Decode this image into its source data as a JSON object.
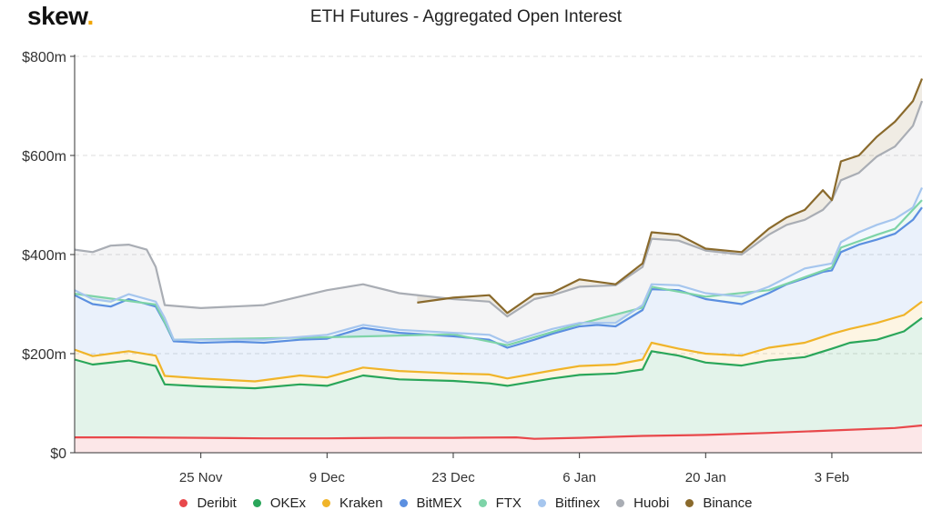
{
  "logo": {
    "text": "skew",
    "dot": "."
  },
  "chart_data": {
    "type": "area",
    "stacked": true,
    "title": "ETH Futures - Aggregated Open Interest",
    "xlabel": "",
    "ylabel": "",
    "ylim": [
      0,
      800
    ],
    "y_ticks": [
      0,
      200,
      400,
      600,
      800
    ],
    "y_tick_labels": [
      "$0",
      "$200m",
      "$400m",
      "$600m",
      "$800m"
    ],
    "x_range": [
      "2019-11-11",
      "2020-02-13"
    ],
    "x_ticks": [
      "2019-11-25",
      "2019-12-09",
      "2019-12-23",
      "2020-01-06",
      "2020-01-20",
      "2020-02-03"
    ],
    "x_tick_labels": [
      "25 Nov",
      "9 Dec",
      "23 Dec",
      "6 Jan",
      "20 Jan",
      "3 Feb"
    ],
    "grid": true,
    "legend_position": "bottom",
    "unit": "millions USD",
    "cumulative_series": [
      {
        "name": "Deribit",
        "color": "#e8484b",
        "points": [
          [
            "2019-11-11",
            31
          ],
          [
            "2019-11-17",
            31
          ],
          [
            "2019-11-25",
            30
          ],
          [
            "2019-12-02",
            29
          ],
          [
            "2019-12-09",
            29
          ],
          [
            "2019-12-16",
            30
          ],
          [
            "2019-12-23",
            30
          ],
          [
            "2019-12-30",
            31
          ],
          [
            "2020-01-01",
            28
          ],
          [
            "2020-01-06",
            30
          ],
          [
            "2020-01-13",
            34
          ],
          [
            "2020-01-20",
            36
          ],
          [
            "2020-01-27",
            40
          ],
          [
            "2020-02-03",
            45
          ],
          [
            "2020-02-10",
            50
          ],
          [
            "2020-02-13",
            55
          ]
        ]
      },
      {
        "name": "OKEx",
        "color": "#2aa65a",
        "points": [
          [
            "2019-11-11",
            188
          ],
          [
            "2019-11-13",
            178
          ],
          [
            "2019-11-17",
            186
          ],
          [
            "2019-11-20",
            175
          ],
          [
            "2019-11-21",
            138
          ],
          [
            "2019-11-25",
            134
          ],
          [
            "2019-12-01",
            130
          ],
          [
            "2019-12-06",
            138
          ],
          [
            "2019-12-09",
            135
          ],
          [
            "2019-12-13",
            156
          ],
          [
            "2019-12-17",
            148
          ],
          [
            "2019-12-23",
            145
          ],
          [
            "2019-12-27",
            140
          ],
          [
            "2019-12-29",
            135
          ],
          [
            "2020-01-03",
            150
          ],
          [
            "2020-01-06",
            157
          ],
          [
            "2020-01-10",
            160
          ],
          [
            "2020-01-13",
            168
          ],
          [
            "2020-01-14",
            205
          ],
          [
            "2020-01-17",
            196
          ],
          [
            "2020-01-20",
            182
          ],
          [
            "2020-01-24",
            176
          ],
          [
            "2020-01-27",
            186
          ],
          [
            "2020-01-31",
            193
          ],
          [
            "2020-02-03",
            210
          ],
          [
            "2020-02-05",
            222
          ],
          [
            "2020-02-08",
            228
          ],
          [
            "2020-02-11",
            245
          ],
          [
            "2020-02-13",
            272
          ]
        ]
      },
      {
        "name": "Kraken",
        "color": "#f0b429",
        "points": [
          [
            "2019-11-11",
            208
          ],
          [
            "2019-11-13",
            195
          ],
          [
            "2019-11-17",
            205
          ],
          [
            "2019-11-20",
            196
          ],
          [
            "2019-11-21",
            155
          ],
          [
            "2019-11-25",
            150
          ],
          [
            "2019-12-01",
            144
          ],
          [
            "2019-12-06",
            156
          ],
          [
            "2019-12-09",
            152
          ],
          [
            "2019-12-13",
            172
          ],
          [
            "2019-12-17",
            165
          ],
          [
            "2019-12-23",
            160
          ],
          [
            "2019-12-27",
            158
          ],
          [
            "2019-12-29",
            150
          ],
          [
            "2020-01-03",
            166
          ],
          [
            "2020-01-06",
            175
          ],
          [
            "2020-01-10",
            178
          ],
          [
            "2020-01-13",
            188
          ],
          [
            "2020-01-14",
            222
          ],
          [
            "2020-01-17",
            210
          ],
          [
            "2020-01-20",
            200
          ],
          [
            "2020-01-24",
            196
          ],
          [
            "2020-01-27",
            212
          ],
          [
            "2020-01-31",
            222
          ],
          [
            "2020-02-03",
            240
          ],
          [
            "2020-02-05",
            250
          ],
          [
            "2020-02-08",
            262
          ],
          [
            "2020-02-11",
            278
          ],
          [
            "2020-02-13",
            305
          ]
        ]
      },
      {
        "name": "BitMEX",
        "color": "#5b8fe0",
        "points": [
          [
            "2019-11-11",
            318
          ],
          [
            "2019-11-13",
            300
          ],
          [
            "2019-11-15",
            295
          ],
          [
            "2019-11-17",
            310
          ],
          [
            "2019-11-19",
            300
          ],
          [
            "2019-11-20",
            295
          ],
          [
            "2019-11-21",
            262
          ],
          [
            "2019-11-22",
            225
          ],
          [
            "2019-11-25",
            222
          ],
          [
            "2019-11-29",
            224
          ],
          [
            "2019-12-02",
            222
          ],
          [
            "2019-12-06",
            228
          ],
          [
            "2019-12-09",
            230
          ],
          [
            "2019-12-13",
            252
          ],
          [
            "2019-12-17",
            242
          ],
          [
            "2019-12-23",
            235
          ],
          [
            "2019-12-27",
            228
          ],
          [
            "2019-12-29",
            212
          ],
          [
            "2020-01-01",
            228
          ],
          [
            "2020-01-03",
            240
          ],
          [
            "2020-01-06",
            255
          ],
          [
            "2020-01-08",
            258
          ],
          [
            "2020-01-10",
            255
          ],
          [
            "2020-01-13",
            288
          ],
          [
            "2020-01-14",
            330
          ],
          [
            "2020-01-17",
            328
          ],
          [
            "2020-01-20",
            310
          ],
          [
            "2020-01-24",
            300
          ],
          [
            "2020-01-27",
            322
          ],
          [
            "2020-01-29",
            340
          ],
          [
            "2020-01-31",
            352
          ],
          [
            "2020-02-02",
            365
          ],
          [
            "2020-02-03",
            368
          ],
          [
            "2020-02-04",
            405
          ],
          [
            "2020-02-06",
            420
          ],
          [
            "2020-02-08",
            430
          ],
          [
            "2020-02-10",
            442
          ],
          [
            "2020-02-12",
            470
          ],
          [
            "2020-02-13",
            495
          ]
        ]
      },
      {
        "name": "FTX",
        "color": "#7ed4a8",
        "points": [
          [
            "2019-11-11",
            321
          ],
          [
            "2019-11-20",
            299
          ],
          [
            "2019-11-22",
            228
          ],
          [
            "2019-12-09",
            233
          ],
          [
            "2019-12-23",
            239
          ],
          [
            "2019-12-29",
            217
          ],
          [
            "2020-01-06",
            260
          ],
          [
            "2020-01-13",
            293
          ],
          [
            "2020-01-14",
            335
          ],
          [
            "2020-01-20",
            315
          ],
          [
            "2020-01-27",
            328
          ],
          [
            "2020-02-03",
            374
          ],
          [
            "2020-02-04",
            414
          ],
          [
            "2020-02-08",
            440
          ],
          [
            "2020-02-10",
            452
          ],
          [
            "2020-02-13",
            510
          ]
        ]
      },
      {
        "name": "Bitfinex",
        "color": "#a6c6ee",
        "points": [
          [
            "2019-11-11",
            328
          ],
          [
            "2019-11-13",
            310
          ],
          [
            "2019-11-15",
            305
          ],
          [
            "2019-11-17",
            320
          ],
          [
            "2019-11-20",
            305
          ],
          [
            "2019-11-21",
            272
          ],
          [
            "2019-11-22",
            228
          ],
          [
            "2019-11-25",
            228
          ],
          [
            "2019-12-02",
            228
          ],
          [
            "2019-12-09",
            238
          ],
          [
            "2019-12-13",
            258
          ],
          [
            "2019-12-17",
            248
          ],
          [
            "2019-12-23",
            242
          ],
          [
            "2019-12-27",
            238
          ],
          [
            "2019-12-29",
            222
          ],
          [
            "2020-01-03",
            250
          ],
          [
            "2020-01-06",
            262
          ],
          [
            "2020-01-10",
            262
          ],
          [
            "2020-01-13",
            298
          ],
          [
            "2020-01-14",
            340
          ],
          [
            "2020-01-17",
            338
          ],
          [
            "2020-01-20",
            322
          ],
          [
            "2020-01-24",
            315
          ],
          [
            "2020-01-27",
            335
          ],
          [
            "2020-01-31",
            372
          ],
          [
            "2020-02-03",
            382
          ],
          [
            "2020-02-04",
            425
          ],
          [
            "2020-02-06",
            445
          ],
          [
            "2020-02-08",
            460
          ],
          [
            "2020-02-10",
            472
          ],
          [
            "2020-02-12",
            495
          ],
          [
            "2020-02-13",
            535
          ]
        ]
      },
      {
        "name": "Huobi",
        "color": "#a9adb4",
        "points": [
          [
            "2019-11-11",
            410
          ],
          [
            "2019-11-13",
            405
          ],
          [
            "2019-11-15",
            418
          ],
          [
            "2019-11-17",
            420
          ],
          [
            "2019-11-19",
            410
          ],
          [
            "2019-11-20",
            375
          ],
          [
            "2019-11-21",
            298
          ],
          [
            "2019-11-25",
            292
          ],
          [
            "2019-12-02",
            298
          ],
          [
            "2019-12-09",
            328
          ],
          [
            "2019-12-13",
            340
          ],
          [
            "2019-12-17",
            322
          ],
          [
            "2019-12-23",
            310
          ],
          [
            "2019-12-27",
            305
          ],
          [
            "2019-12-29",
            275
          ],
          [
            "2020-01-01",
            310
          ],
          [
            "2020-01-03",
            318
          ],
          [
            "2020-01-06",
            335
          ],
          [
            "2020-01-10",
            338
          ],
          [
            "2020-01-13",
            375
          ],
          [
            "2020-01-14",
            432
          ],
          [
            "2020-01-17",
            428
          ],
          [
            "2020-01-20",
            408
          ],
          [
            "2020-01-24",
            400
          ],
          [
            "2020-01-27",
            440
          ],
          [
            "2020-01-29",
            460
          ],
          [
            "2020-01-31",
            470
          ],
          [
            "2020-02-02",
            490
          ],
          [
            "2020-02-03",
            510
          ],
          [
            "2020-02-04",
            550
          ],
          [
            "2020-02-06",
            565
          ],
          [
            "2020-02-08",
            598
          ],
          [
            "2020-02-10",
            618
          ],
          [
            "2020-02-12",
            660
          ],
          [
            "2020-02-13",
            710
          ]
        ]
      },
      {
        "name": "Binance",
        "color": "#8a6a2c",
        "start": "2019-12-19",
        "points": [
          [
            "2019-12-19",
            303
          ],
          [
            "2019-12-23",
            313
          ],
          [
            "2019-12-27",
            318
          ],
          [
            "2019-12-29",
            282
          ],
          [
            "2020-01-01",
            320
          ],
          [
            "2020-01-03",
            323
          ],
          [
            "2020-01-06",
            350
          ],
          [
            "2020-01-10",
            340
          ],
          [
            "2020-01-13",
            382
          ],
          [
            "2020-01-14",
            445
          ],
          [
            "2020-01-17",
            440
          ],
          [
            "2020-01-20",
            412
          ],
          [
            "2020-01-24",
            405
          ],
          [
            "2020-01-27",
            452
          ],
          [
            "2020-01-29",
            475
          ],
          [
            "2020-01-31",
            490
          ],
          [
            "2020-02-02",
            530
          ],
          [
            "2020-02-03",
            510
          ],
          [
            "2020-02-04",
            588
          ],
          [
            "2020-02-06",
            600
          ],
          [
            "2020-02-08",
            638
          ],
          [
            "2020-02-10",
            668
          ],
          [
            "2020-02-12",
            710
          ],
          [
            "2020-02-13",
            755
          ]
        ]
      }
    ]
  }
}
